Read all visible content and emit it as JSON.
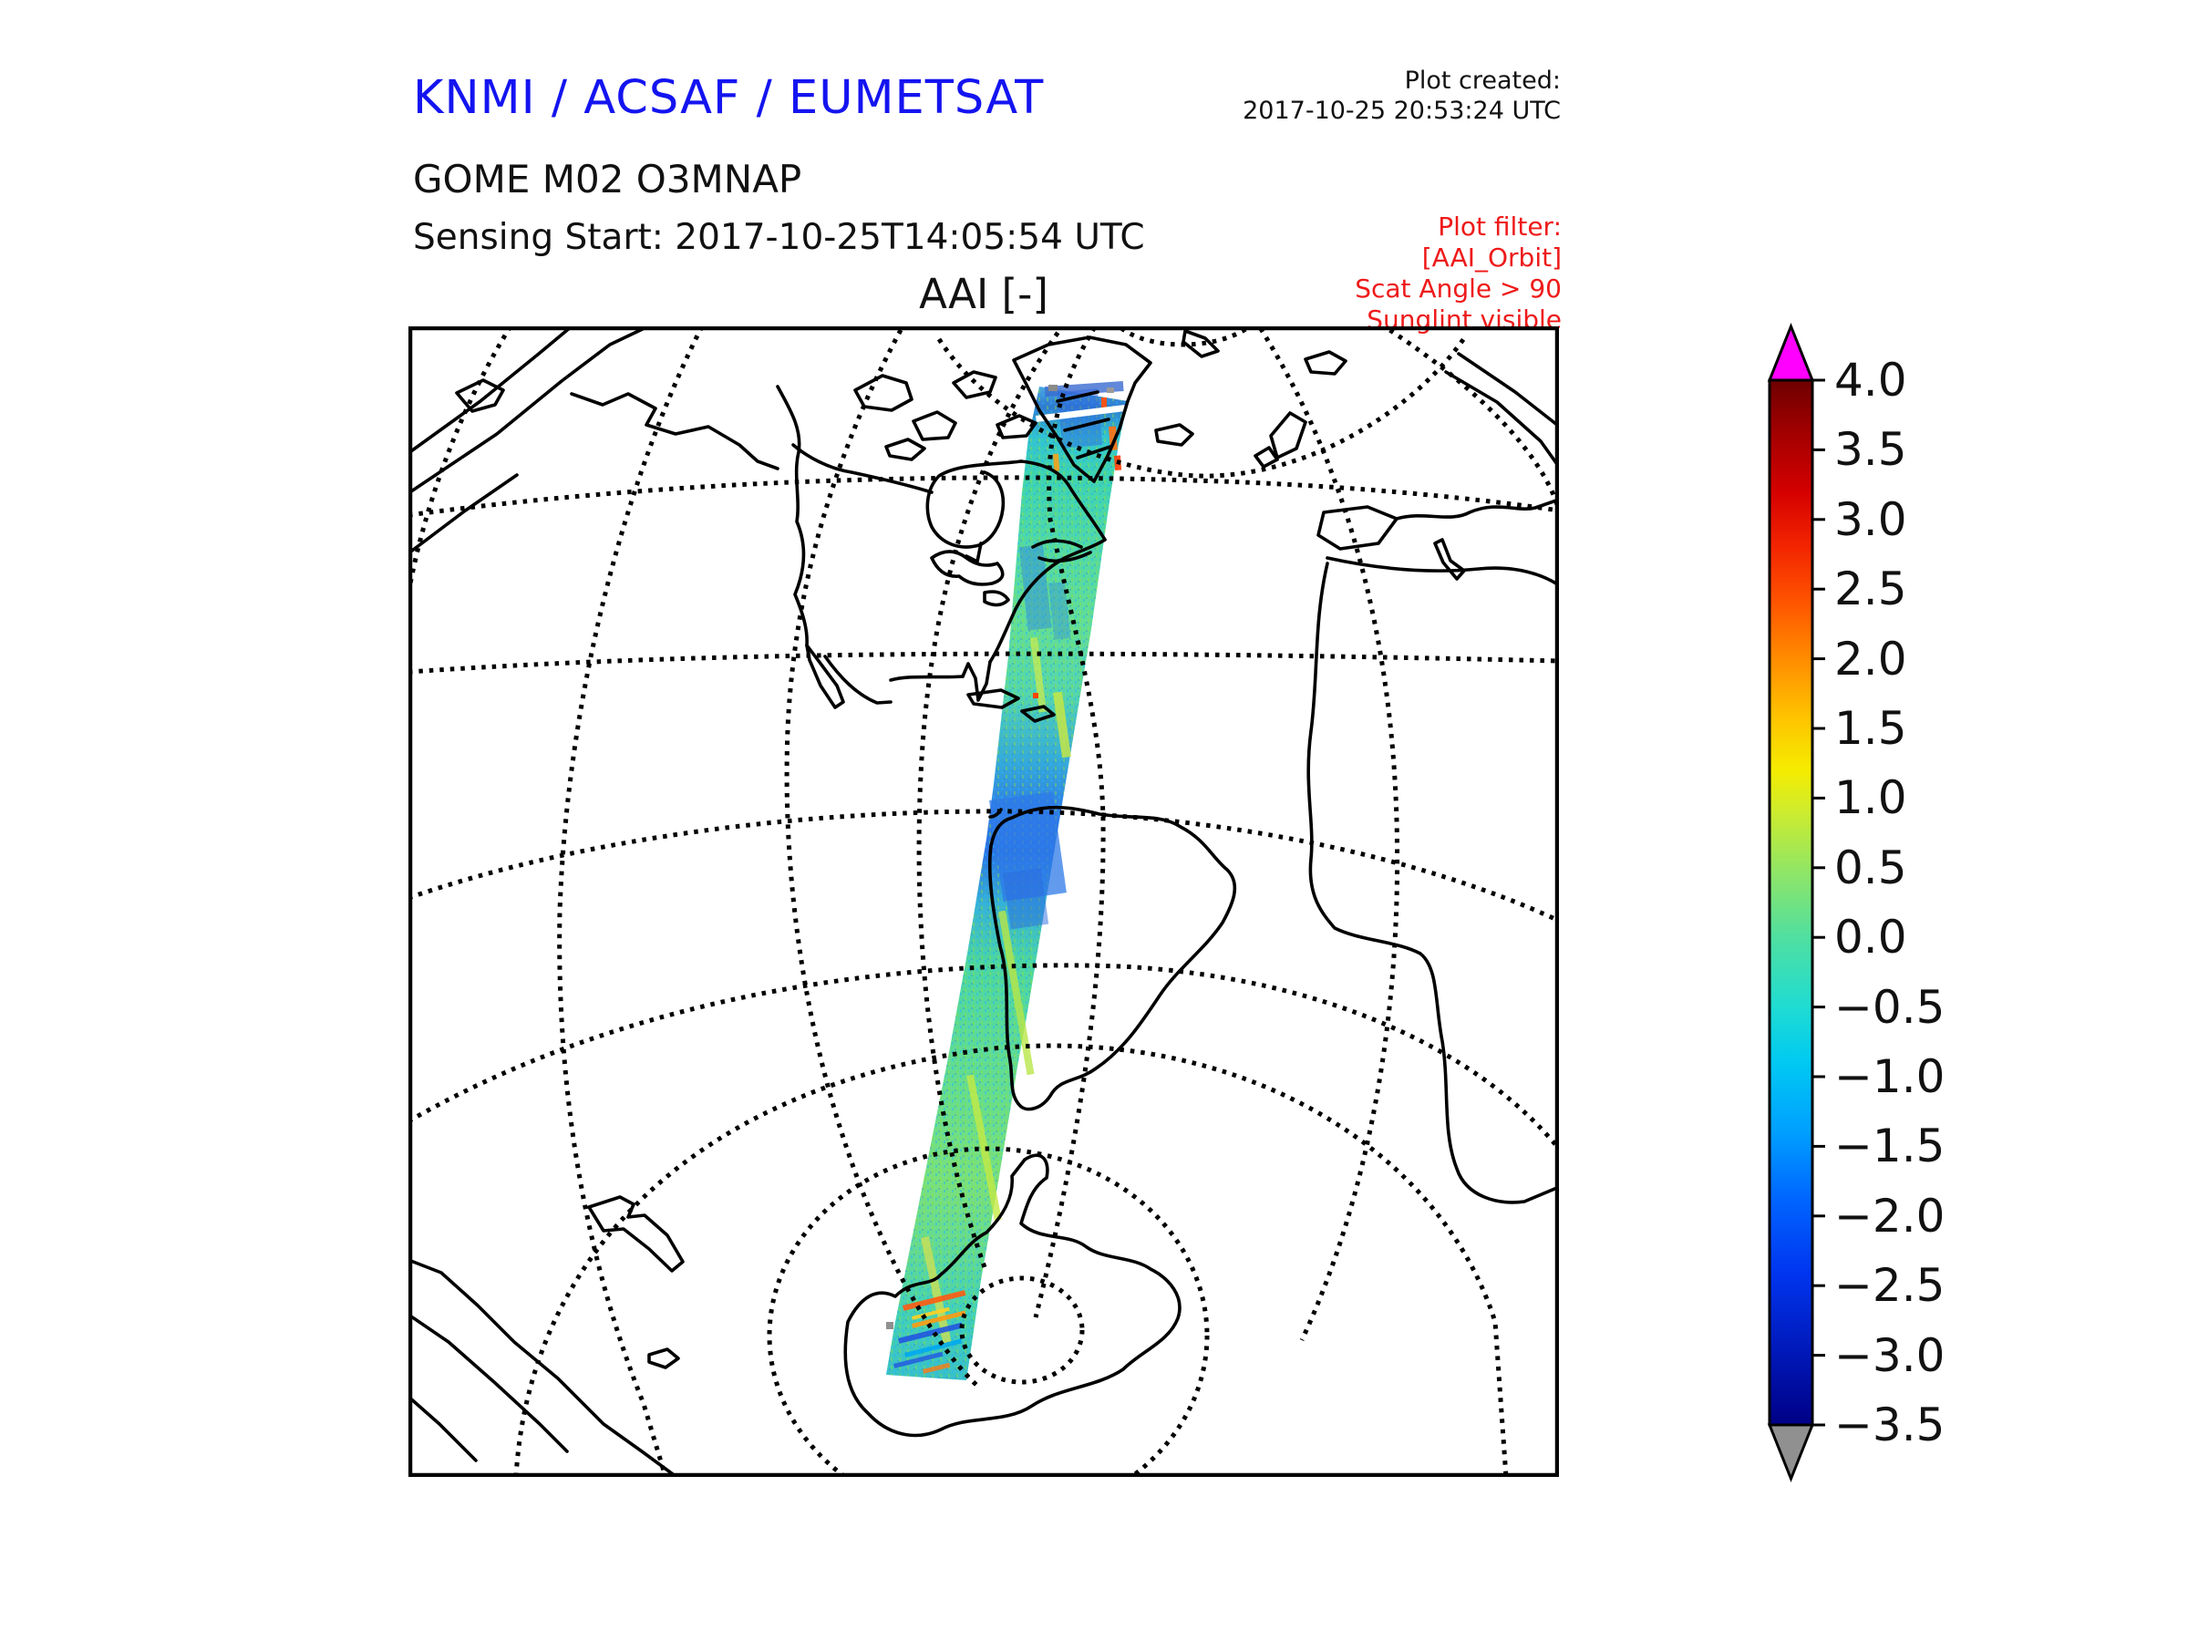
{
  "header": {
    "org_title": "KNMI / ACSAF / EUMETSAT",
    "product_name": "GOME M02 O3MNAP",
    "sensing_start": "Sensing Start: 2017-10-25T14:05:54 UTC",
    "plot_created_label": "Plot created:",
    "plot_created_value": "2017-10-25 20:53:24 UTC",
    "filter_lines": [
      "Plot filter:",
      "[AAI_Orbit]",
      "Scat Angle > 90",
      "Sunglint visible"
    ]
  },
  "map": {
    "title": "AAI [-]",
    "projection": "globe perspective view of the Americas and Atlantic, North Pole near top, South Pole (Antarctica) near bottom",
    "features": [
      "North America",
      "Greenland",
      "South America",
      "Europe",
      "Africa",
      "Antarctica",
      "New Zealand"
    ]
  },
  "colors": {
    "org_title_blue": "#1414f0",
    "filter_red": "#ee1a1a",
    "coastline": "#000000",
    "over_range": "#ff00ff",
    "under_range": "#909090",
    "background": "#ffffff"
  },
  "chart_data": {
    "type": "heatmap",
    "title": "AAI [-]",
    "description": "Absorbing Aerosol Index along a single GOME-2 MetOp-A orbit swath, running from Greenland (top) across the eastern USA, Caribbean and western South America down to Antarctica (bottom). Swath values are mostly between -1.5 and +1 (cyan/green), with blue patches (~-2) over Greenland, the eastern US coast and Peru/Ecuador, and orange-red streaks (>2) near the Antarctic edge.",
    "legend_position": "right",
    "colorbar": {
      "min": -3.5,
      "max": 4.0,
      "tick_step": 0.5,
      "tick_labels": [
        "4.0",
        "3.5",
        "3.0",
        "2.5",
        "2.0",
        "1.5",
        "1.0",
        "0.5",
        "0.0",
        "−0.5",
        "−1.0",
        "−1.5",
        "−2.0",
        "−2.5",
        "−3.0",
        "−3.5"
      ],
      "tick_values": [
        4.0,
        3.5,
        3.0,
        2.5,
        2.0,
        1.5,
        1.0,
        0.5,
        0.0,
        -0.5,
        -1.0,
        -1.5,
        -2.0,
        -2.5,
        -3.0,
        -3.5
      ],
      "over_color": "#ff00ff",
      "under_color": "#909090",
      "stops": [
        {
          "value": 4.0,
          "color": "#6e0000"
        },
        {
          "value": 3.6,
          "color": "#a50000"
        },
        {
          "value": 3.2,
          "color": "#d40000"
        },
        {
          "value": 2.8,
          "color": "#f32500"
        },
        {
          "value": 2.4,
          "color": "#ff5500"
        },
        {
          "value": 2.0,
          "color": "#ff8c00"
        },
        {
          "value": 1.6,
          "color": "#ffc100"
        },
        {
          "value": 1.2,
          "color": "#f5ec00"
        },
        {
          "value": 0.9,
          "color": "#cdec2e"
        },
        {
          "value": 0.5,
          "color": "#94e662"
        },
        {
          "value": 0.0,
          "color": "#50dfa0"
        },
        {
          "value": -0.5,
          "color": "#1fdcd2"
        },
        {
          "value": -0.9,
          "color": "#00c9f2"
        },
        {
          "value": -1.4,
          "color": "#009fff"
        },
        {
          "value": -1.9,
          "color": "#0063ff"
        },
        {
          "value": -2.4,
          "color": "#0036f0"
        },
        {
          "value": -2.9,
          "color": "#001cc0"
        },
        {
          "value": -3.5,
          "color": "#000085"
        }
      ]
    },
    "swath": {
      "top_region": "Greenland",
      "bottom_region": "Antarctica",
      "gradient_stops": [
        {
          "offset": 0.0,
          "color": "#4aa8e0"
        },
        {
          "offset": 0.02,
          "color": "#2f7ad0"
        },
        {
          "offset": 0.05,
          "color": "#33c4cf"
        },
        {
          "offset": 0.09,
          "color": "#3fd4ae"
        },
        {
          "offset": 0.16,
          "color": "#52d9a4"
        },
        {
          "offset": 0.24,
          "color": "#63de96"
        },
        {
          "offset": 0.31,
          "color": "#55d6ab"
        },
        {
          "offset": 0.38,
          "color": "#35a8d8"
        },
        {
          "offset": 0.43,
          "color": "#2f7ce6"
        },
        {
          "offset": 0.47,
          "color": "#2b74e4"
        },
        {
          "offset": 0.52,
          "color": "#38b2d4"
        },
        {
          "offset": 0.58,
          "color": "#4cd6a2"
        },
        {
          "offset": 0.65,
          "color": "#5ada9a"
        },
        {
          "offset": 0.72,
          "color": "#68de8c"
        },
        {
          "offset": 0.8,
          "color": "#79e07c"
        },
        {
          "offset": 0.87,
          "color": "#62da96"
        },
        {
          "offset": 0.93,
          "color": "#45d2b2"
        },
        {
          "offset": 1.0,
          "color": "#38c0c8"
        }
      ]
    }
  }
}
